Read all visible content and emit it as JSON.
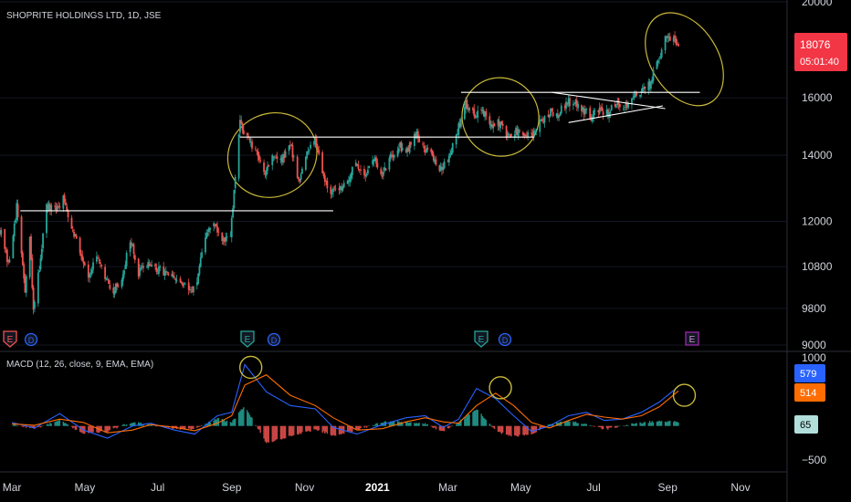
{
  "main_title": "SHOPRITE HOLDINGS LTD, 1D, JSE",
  "macd_title": "MACD (12, 26, close, 9, EMA, EMA)",
  "colors": {
    "up": "#26a69a",
    "down": "#ef5350",
    "macd_line": "#2962ff",
    "signal_line": "#ff6d00",
    "annotation": "#c9b93a",
    "level_line": "#ffffff",
    "price_badge": "#f23645",
    "macd_badge": "#2962ff",
    "signal_badge": "#ff6d00",
    "hist_badge": "#b2dfdb"
  },
  "price_badge": {
    "value": "18076",
    "countdown": "05:01:40"
  },
  "macd_badges": {
    "macd": "579",
    "signal": "514",
    "histogram": "65"
  },
  "event_markers": [
    "E",
    "D",
    "E",
    "D",
    "E",
    "D",
    "E"
  ],
  "chart_data": [
    {
      "type": "candlestick",
      "title": "SHOPRITE HOLDINGS LTD, 1D, JSE",
      "y_scale": "log",
      "y_tick_labels": [
        "20000",
        "16000",
        "14000",
        "12000",
        "10800",
        "9800",
        "9000"
      ],
      "y_ticks": [
        20000,
        16000,
        14000,
        12000,
        10800,
        9800,
        9000
      ],
      "ylim": [
        9000,
        20000
      ],
      "x_tick_labels": [
        "Mar",
        "May",
        "Jul",
        "Sep",
        "Nov",
        "2021",
        "Mar",
        "May",
        "Jul",
        "Sep",
        "Nov"
      ],
      "x_ticks": [
        "2020-03-01",
        "2020-05-01",
        "2020-07-01",
        "2020-09-01",
        "2020-11-01",
        "2021-01-01",
        "2021-03-01",
        "2021-05-01",
        "2021-07-01",
        "2021-09-01",
        "2021-11-01"
      ],
      "xlim": [
        "2020-02-20",
        "2021-12-10"
      ],
      "close_path": [
        [
          "2020-02-20",
          11800
        ],
        [
          "2020-02-27",
          10800
        ],
        [
          "2020-03-05",
          12400
        ],
        [
          "2020-03-12",
          10200
        ],
        [
          "2020-03-16",
          11500
        ],
        [
          "2020-03-19",
          9700
        ],
        [
          "2020-03-24",
          10800
        ],
        [
          "2020-03-30",
          12400
        ],
        [
          "2020-04-06",
          12300
        ],
        [
          "2020-04-13",
          12650
        ],
        [
          "2020-04-20",
          11900
        ],
        [
          "2020-04-27",
          11200
        ],
        [
          "2020-05-04",
          10600
        ],
        [
          "2020-05-11",
          11000
        ],
        [
          "2020-05-18",
          10500
        ],
        [
          "2020-05-25",
          10200
        ],
        [
          "2020-06-01",
          10500
        ],
        [
          "2020-06-08",
          11500
        ],
        [
          "2020-06-15",
          10600
        ],
        [
          "2020-06-22",
          10900
        ],
        [
          "2020-06-29",
          10700
        ],
        [
          "2020-07-06",
          10700
        ],
        [
          "2020-07-13",
          10500
        ],
        [
          "2020-07-20",
          10400
        ],
        [
          "2020-07-27",
          10200
        ],
        [
          "2020-08-03",
          10400
        ],
        [
          "2020-08-10",
          11600
        ],
        [
          "2020-08-17",
          12000
        ],
        [
          "2020-08-24",
          11400
        ],
        [
          "2020-08-31",
          11600
        ],
        [
          "2020-09-03",
          12800
        ],
        [
          "2020-09-08",
          15100
        ],
        [
          "2020-09-15",
          14500
        ],
        [
          "2020-09-22",
          14000
        ],
        [
          "2020-09-29",
          13500
        ],
        [
          "2020-10-06",
          14000
        ],
        [
          "2020-10-13",
          13800
        ],
        [
          "2020-10-20",
          14400
        ],
        [
          "2020-10-27",
          13200
        ],
        [
          "2020-11-03",
          14000
        ],
        [
          "2020-11-10",
          14600
        ],
        [
          "2020-11-17",
          13300
        ],
        [
          "2020-11-24",
          12800
        ],
        [
          "2020-12-01",
          13000
        ],
        [
          "2020-12-08",
          13300
        ],
        [
          "2020-12-15",
          13700
        ],
        [
          "2020-12-22",
          13400
        ],
        [
          "2020-12-29",
          13900
        ],
        [
          "2021-01-05",
          13300
        ],
        [
          "2021-01-12",
          14000
        ],
        [
          "2021-01-19",
          14300
        ],
        [
          "2021-01-26",
          14200
        ],
        [
          "2021-02-02",
          14700
        ],
        [
          "2021-02-09",
          14300
        ],
        [
          "2021-02-16",
          14000
        ],
        [
          "2021-02-23",
          13500
        ],
        [
          "2021-03-02",
          14000
        ],
        [
          "2021-03-09",
          14800
        ],
        [
          "2021-03-16",
          15800
        ],
        [
          "2021-03-23",
          15400
        ],
        [
          "2021-03-30",
          15600
        ],
        [
          "2021-04-06",
          14900
        ],
        [
          "2021-04-13",
          15100
        ],
        [
          "2021-04-20",
          14600
        ],
        [
          "2021-04-27",
          14800
        ],
        [
          "2021-05-04",
          14600
        ],
        [
          "2021-05-11",
          14700
        ],
        [
          "2021-05-18",
          15100
        ],
        [
          "2021-05-25",
          15500
        ],
        [
          "2021-06-01",
          15400
        ],
        [
          "2021-06-08",
          15800
        ],
        [
          "2021-06-15",
          15900
        ],
        [
          "2021-06-22",
          15600
        ],
        [
          "2021-06-29",
          15300
        ],
        [
          "2021-07-06",
          15600
        ],
        [
          "2021-07-13",
          15400
        ],
        [
          "2021-07-20",
          15800
        ],
        [
          "2021-07-27",
          15700
        ],
        [
          "2021-08-03",
          15900
        ],
        [
          "2021-08-10",
          16300
        ],
        [
          "2021-08-17",
          16500
        ],
        [
          "2021-08-24",
          17500
        ],
        [
          "2021-08-31",
          18400
        ],
        [
          "2021-09-07",
          18200
        ],
        [
          "2021-09-10",
          18076
        ]
      ],
      "horizontal_levels": [
        {
          "price": 12300,
          "from": "2020-03-08",
          "to": "2020-11-25"
        },
        {
          "price": 14600,
          "from": "2020-09-08",
          "to": "2021-05-12"
        },
        {
          "price": 16200,
          "from": "2021-03-12",
          "to": "2021-09-28"
        }
      ],
      "triangle_lines": [
        {
          "from": [
            "2021-05-27",
            16200
          ],
          "to": [
            "2021-08-30",
            15600
          ]
        },
        {
          "from": [
            "2021-06-10",
            15100
          ],
          "to": [
            "2021-08-28",
            15700
          ]
        }
      ],
      "highlight_ellipses": [
        {
          "center": [
            "2020-10-05",
            14000
          ],
          "span_days": 76,
          "price_range": [
            12700,
            15400
          ],
          "rotation": -28
        },
        {
          "center": [
            "2021-04-14",
            15300
          ],
          "span_days": 64,
          "price_range": [
            13900,
            16700
          ],
          "rotation": -22
        },
        {
          "center": [
            "2021-09-15",
            17500
          ],
          "span_days": 56,
          "price_range": [
            15800,
            20000
          ],
          "rotation": -32
        }
      ]
    },
    {
      "type": "line",
      "title": "MACD (12, 26, close, 9, EMA, EMA)",
      "y_tick_labels": [
        "1000",
        "−500"
      ],
      "y_ticks": [
        1000,
        -500
      ],
      "ylim": [
        -580,
        1000
      ],
      "series": [
        {
          "name": "",
          "color": "#2962ff",
          "points": [
            [
              "2020-03-01",
              50
            ],
            [
              "2020-03-20",
              -30
            ],
            [
              "2020-04-10",
              180
            ],
            [
              "2020-04-30",
              -60
            ],
            [
              "2020-05-20",
              -180
            ],
            [
              "2020-06-10",
              0
            ],
            [
              "2020-06-25",
              40
            ],
            [
              "2020-07-15",
              -60
            ],
            [
              "2020-08-01",
              -120
            ],
            [
              "2020-08-20",
              150
            ],
            [
              "2020-09-01",
              200
            ],
            [
              "2020-09-12",
              900
            ],
            [
              "2020-09-30",
              500
            ],
            [
              "2020-10-20",
              300
            ],
            [
              "2020-11-10",
              250
            ],
            [
              "2020-11-25",
              -20
            ],
            [
              "2020-12-15",
              -120
            ],
            [
              "2021-01-05",
              20
            ],
            [
              "2021-01-25",
              120
            ],
            [
              "2021-02-10",
              150
            ],
            [
              "2021-02-25",
              -20
            ],
            [
              "2021-03-10",
              100
            ],
            [
              "2021-03-25",
              550
            ],
            [
              "2021-04-10",
              400
            ],
            [
              "2021-04-25",
              150
            ],
            [
              "2021-05-10",
              -80
            ],
            [
              "2021-05-25",
              0
            ],
            [
              "2021-06-10",
              150
            ],
            [
              "2021-06-25",
              200
            ],
            [
              "2021-07-10",
              80
            ],
            [
              "2021-07-25",
              100
            ],
            [
              "2021-08-10",
              200
            ],
            [
              "2021-08-25",
              350
            ],
            [
              "2021-09-10",
              579
            ]
          ]
        },
        {
          "name": "",
          "color": "#ff6d00",
          "points": [
            [
              "2020-03-01",
              30
            ],
            [
              "2020-03-20",
              10
            ],
            [
              "2020-04-10",
              100
            ],
            [
              "2020-04-30",
              50
            ],
            [
              "2020-05-20",
              -100
            ],
            [
              "2020-06-10",
              -60
            ],
            [
              "2020-06-25",
              20
            ],
            [
              "2020-07-15",
              -20
            ],
            [
              "2020-08-01",
              -70
            ],
            [
              "2020-08-20",
              40
            ],
            [
              "2020-09-01",
              150
            ],
            [
              "2020-09-12",
              600
            ],
            [
              "2020-09-30",
              750
            ],
            [
              "2020-10-20",
              450
            ],
            [
              "2020-11-10",
              300
            ],
            [
              "2020-11-25",
              120
            ],
            [
              "2020-12-15",
              -60
            ],
            [
              "2021-01-05",
              -40
            ],
            [
              "2021-01-25",
              60
            ],
            [
              "2021-02-10",
              120
            ],
            [
              "2021-02-25",
              60
            ],
            [
              "2021-03-10",
              40
            ],
            [
              "2021-03-25",
              300
            ],
            [
              "2021-04-10",
              480
            ],
            [
              "2021-04-25",
              300
            ],
            [
              "2021-05-10",
              50
            ],
            [
              "2021-05-25",
              -30
            ],
            [
              "2021-06-10",
              80
            ],
            [
              "2021-06-25",
              170
            ],
            [
              "2021-07-10",
              130
            ],
            [
              "2021-07-25",
              100
            ],
            [
              "2021-08-10",
              150
            ],
            [
              "2021-08-25",
              280
            ],
            [
              "2021-09-10",
              514
            ]
          ]
        }
      ],
      "highlight_circles": [
        {
          "center": [
            "2020-09-17",
            860
          ]
        },
        {
          "center": [
            "2021-04-14",
            560
          ]
        },
        {
          "center": [
            "2021-09-15",
            450
          ]
        }
      ]
    }
  ]
}
